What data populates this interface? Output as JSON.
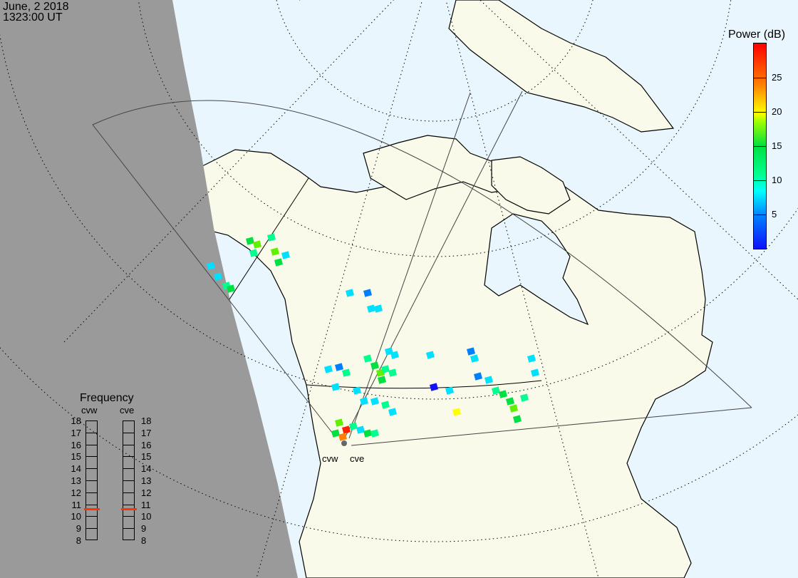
{
  "header": {
    "date": "June, 2 2018",
    "time": "1323:00 UT"
  },
  "colorbar": {
    "title": "Power (dB)",
    "ticks": [
      "25",
      "20",
      "15",
      "10",
      "5"
    ],
    "range": [
      0,
      30
    ],
    "colors": [
      "#1010ff",
      "#0080ff",
      "#00e0ff",
      "#00ff90",
      "#00e040",
      "#60f000",
      "#ffff00",
      "#ff8000",
      "#ff2000"
    ]
  },
  "frequency": {
    "title": "Frequency",
    "unit_range": [
      8,
      18
    ],
    "labels": [
      "18",
      "17",
      "16",
      "15",
      "14",
      "13",
      "12",
      "11",
      "10",
      "9",
      "8"
    ],
    "radars": [
      {
        "name": "cvw",
        "freq_mhz": 10.6
      },
      {
        "name": "cve",
        "freq_mhz": 10.6
      }
    ]
  },
  "radars": {
    "west": "cvw",
    "east": "cve"
  },
  "colors": {
    "night": "#9a9a9a",
    "sea": "#eaf6fd",
    "land": "#fafaea",
    "marker": "#ff3300"
  }
}
